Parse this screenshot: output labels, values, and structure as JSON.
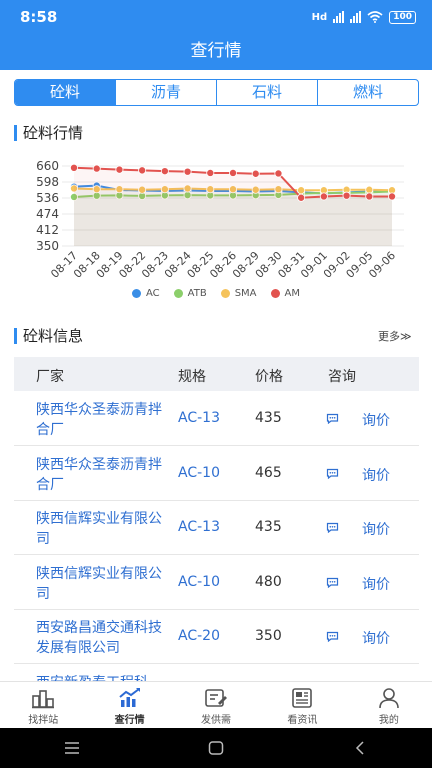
{
  "status_bar": {
    "time": "8:58",
    "battery": "100",
    "signal_label": "Hd"
  },
  "page_title": "查行情",
  "tabs": [
    {
      "label": "砼料",
      "active": true
    },
    {
      "label": "沥青",
      "active": false
    },
    {
      "label": "石料",
      "active": false
    },
    {
      "label": "燃料",
      "active": false
    }
  ],
  "market_section": {
    "title": "砼料行情"
  },
  "chart_data": {
    "type": "line",
    "categories": [
      "08-17",
      "08-18",
      "08-19",
      "08-22",
      "08-23",
      "08-24",
      "08-25",
      "08-26",
      "08-29",
      "08-30",
      "08-31",
      "09-01",
      "09-02",
      "09-05",
      "09-06"
    ],
    "yticks": [
      660,
      598,
      536,
      474,
      412,
      350
    ],
    "ylim": [
      350,
      660
    ],
    "legend_position": "bottom",
    "series": [
      {
        "name": "AC",
        "color": "#3a8ee6",
        "values": [
          580,
          584,
          567,
          565,
          563,
          565,
          563,
          563,
          561,
          563,
          558,
          554,
          558,
          561,
          563
        ]
      },
      {
        "name": "ATB",
        "color": "#8ccf6b",
        "values": [
          540,
          545,
          546,
          544,
          546,
          547,
          546,
          546,
          547,
          548,
          553,
          556,
          556,
          558,
          561
        ]
      },
      {
        "name": "SMA",
        "color": "#f5c35c",
        "values": [
          573,
          570,
          570,
          568,
          570,
          573,
          570,
          570,
          568,
          570,
          566,
          566,
          568,
          568,
          566
        ]
      },
      {
        "name": "AM",
        "color": "#e2534f",
        "values": [
          653,
          650,
          646,
          643,
          640,
          638,
          633,
          633,
          630,
          631,
          537,
          542,
          545,
          542,
          542
        ]
      }
    ]
  },
  "info_section": {
    "title": "砼料信息",
    "more_label": "更多≫"
  },
  "table": {
    "headers": [
      "厂家",
      "规格",
      "价格",
      "咨询"
    ],
    "rows": [
      {
        "maker": "陕西华众圣泰沥青拌合厂",
        "spec": "AC-13",
        "price": "435",
        "action": "询价"
      },
      {
        "maker": "陕西华众圣泰沥青拌合厂",
        "spec": "AC-10",
        "price": "465",
        "action": "询价"
      },
      {
        "maker": "陕西信辉实业有限公司",
        "spec": "AC-13",
        "price": "435",
        "action": "询价"
      },
      {
        "maker": "陕西信辉实业有限公司",
        "spec": "AC-10",
        "price": "480",
        "action": "询价"
      },
      {
        "maker": "西安路昌通交通科技发展有限公司",
        "spec": "AC-20",
        "price": "350",
        "action": "询价"
      },
      {
        "maker": "西安新盈泰工程科",
        "spec": "",
        "price": "",
        "action": ""
      }
    ]
  },
  "bottom_nav": [
    {
      "label": "找拌站",
      "icon": "plant-icon",
      "active": false
    },
    {
      "label": "查行情",
      "icon": "chart-icon",
      "active": true
    },
    {
      "label": "发供需",
      "icon": "edit-icon",
      "active": false
    },
    {
      "label": "看资讯",
      "icon": "news-icon",
      "active": false
    },
    {
      "label": "我的",
      "icon": "user-icon",
      "active": false
    }
  ]
}
